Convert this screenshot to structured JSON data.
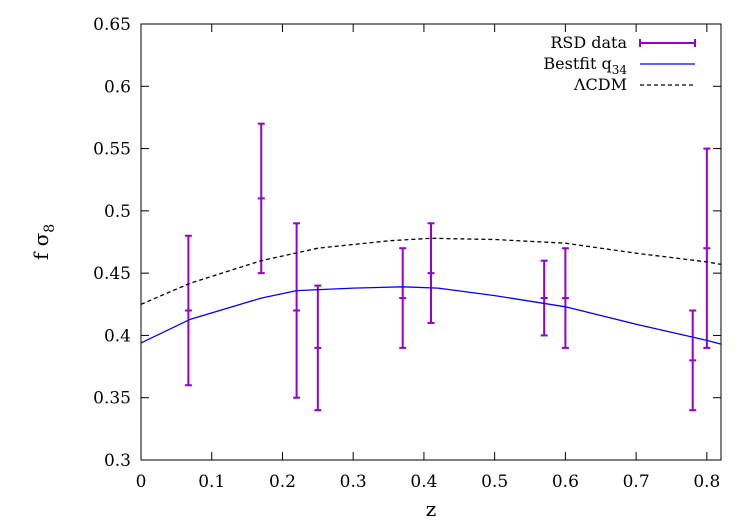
{
  "chart_data": {
    "type": "line",
    "xlabel": "z",
    "ylabel": "f σ",
    "ylabel_sub": "8",
    "xlim": [
      0,
      0.82
    ],
    "ylim": [
      0.3,
      0.65
    ],
    "xticks": [
      "0",
      "0.1",
      "0.2",
      "0.3",
      "0.4",
      "0.5",
      "0.6",
      "0.7",
      "0.8"
    ],
    "yticks": [
      "0.3",
      "0.35",
      "0.4",
      "0.45",
      "0.5",
      "0.55",
      "0.6",
      "0.65"
    ],
    "legend": {
      "position": "top-right",
      "entries": [
        {
          "label": "RSD data",
          "style": "errorbar"
        },
        {
          "label": "Bestfit q",
          "sub": "34",
          "style": "solid"
        },
        {
          "label": "ΛCDM",
          "style": "dashed"
        }
      ]
    },
    "series": [
      {
        "name": "RSD data",
        "kind": "errorbar",
        "color": "#9400D3",
        "points": [
          {
            "x": 0.067,
            "y": 0.42,
            "err": 0.06
          },
          {
            "x": 0.17,
            "y": 0.51,
            "err": 0.06
          },
          {
            "x": 0.22,
            "y": 0.42,
            "err": 0.07
          },
          {
            "x": 0.25,
            "y": 0.39,
            "err": 0.05
          },
          {
            "x": 0.37,
            "y": 0.43,
            "err": 0.04
          },
          {
            "x": 0.41,
            "y": 0.45,
            "err": 0.04
          },
          {
            "x": 0.57,
            "y": 0.43,
            "err": 0.03
          },
          {
            "x": 0.6,
            "y": 0.43,
            "err": 0.04
          },
          {
            "x": 0.78,
            "y": 0.38,
            "err": 0.04
          },
          {
            "x": 0.8,
            "y": 0.47,
            "err": 0.08
          }
        ]
      },
      {
        "name": "Bestfit q34",
        "kind": "line",
        "color": "#0000FF",
        "x": [
          0,
          0.07,
          0.17,
          0.22,
          0.3,
          0.37,
          0.42,
          0.5,
          0.6,
          0.7,
          0.8,
          0.82
        ],
        "y": [
          0.394,
          0.413,
          0.43,
          0.436,
          0.438,
          0.439,
          0.438,
          0.432,
          0.423,
          0.409,
          0.396,
          0.393
        ]
      },
      {
        "name": "ΛCDM",
        "kind": "dashed",
        "color": "#000000",
        "x": [
          0,
          0.07,
          0.17,
          0.25,
          0.35,
          0.41,
          0.5,
          0.6,
          0.7,
          0.8,
          0.82
        ],
        "y": [
          0.425,
          0.442,
          0.46,
          0.47,
          0.476,
          0.478,
          0.477,
          0.474,
          0.466,
          0.459,
          0.457
        ]
      }
    ]
  }
}
